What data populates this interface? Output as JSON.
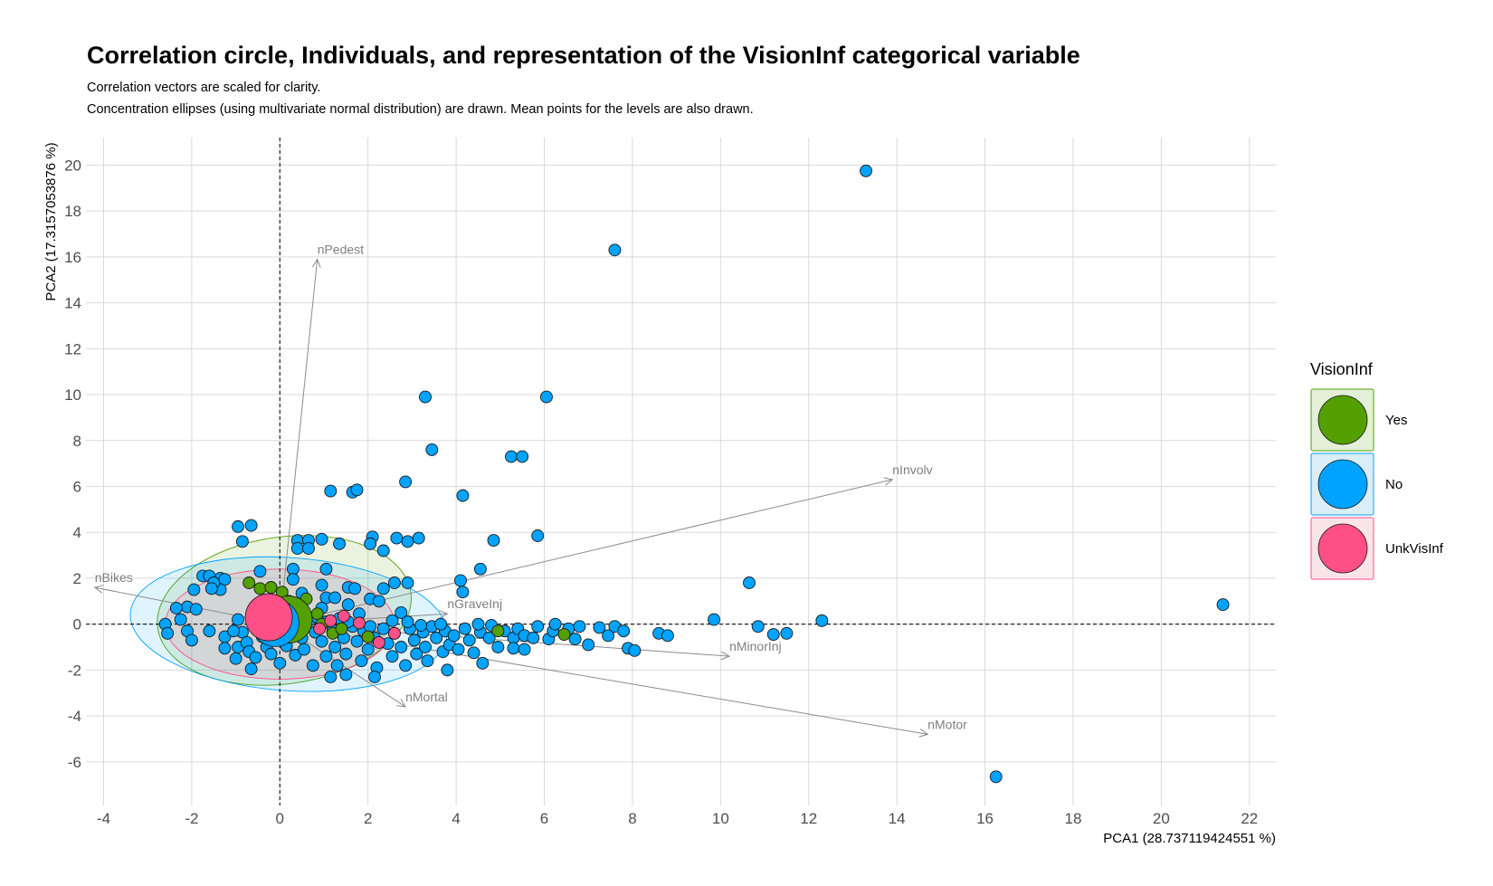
{
  "title": "Correlation circle, Individuals, and representation of the VisionInf categorical variable",
  "subtitle_lines": [
    "Correlation vectors are scaled for clarity.",
    "Concentration ellipses (using multivariate normal distribution) are drawn. Mean points for the levels are also drawn."
  ],
  "chart_data": {
    "type": "scatter",
    "xlabel": "PCA1 (28.737119424551 %)",
    "ylabel": "PCA2 (17.3157053876 %)",
    "xlim": [
      -4.4,
      22.6
    ],
    "ylim": [
      -7.9,
      21.2
    ],
    "xticks": [
      -4,
      -2,
      0,
      2,
      4,
      6,
      8,
      10,
      12,
      14,
      16,
      18,
      20,
      22
    ],
    "yticks": [
      -6,
      -4,
      -2,
      0,
      2,
      4,
      6,
      8,
      10,
      12,
      14,
      16,
      18,
      20
    ],
    "grid": true,
    "reference_lines": {
      "x": 0,
      "y": 0,
      "style": "dashed"
    },
    "legend": {
      "title": "VisionInf",
      "placement": "right",
      "items": [
        {
          "label": "Yes",
          "color": "#53A000",
          "fill": "#E3EFD6"
        },
        {
          "label": "No",
          "color": "#00A3FF",
          "fill": "#DAEEF9"
        },
        {
          "label": "UnkVisInf",
          "color": "#FF4F87",
          "fill": "#F9E4EA"
        }
      ]
    },
    "vectors": [
      {
        "label": "nPedest",
        "x": 0.85,
        "y": 15.9
      },
      {
        "label": "nBikes",
        "x": -4.2,
        "y": 1.6
      },
      {
        "label": "nGraveInj",
        "x": 3.8,
        "y": 0.45
      },
      {
        "label": "nInvolv",
        "x": 13.9,
        "y": 6.3
      },
      {
        "label": "nMinorInj",
        "x": 10.2,
        "y": -1.4
      },
      {
        "label": "nMortal",
        "x": 2.85,
        "y": -3.6
      },
      {
        "label": "nMotor",
        "x": 14.7,
        "y": -4.8
      }
    ],
    "ellipses": [
      {
        "level": "Yes",
        "cx": 0.1,
        "cy": 0.6,
        "rx": 2.9,
        "ry": 3.2,
        "angle_deg": -8
      },
      {
        "level": "No",
        "cx": 0.2,
        "cy": 0.0,
        "rx": 3.6,
        "ry": 2.9,
        "angle_deg": 4
      },
      {
        "level": "UnkVisInf",
        "cx": 0.0,
        "cy": 0.0,
        "rx": 2.6,
        "ry": 2.4,
        "angle_deg": 0
      }
    ],
    "means": [
      {
        "level": "Yes",
        "x": 0.2,
        "y": 0.2
      },
      {
        "level": "No",
        "x": -0.1,
        "y": 0.05
      },
      {
        "level": "UnkVisInf",
        "x": -0.25,
        "y": 0.3
      }
    ],
    "points_no": [
      [
        13.3,
        19.75
      ],
      [
        7.6,
        16.3
      ],
      [
        3.3,
        9.9
      ],
      [
        6.05,
        9.9
      ],
      [
        3.45,
        7.6
      ],
      [
        5.25,
        7.3
      ],
      [
        5.5,
        7.3
      ],
      [
        2.85,
        6.2
      ],
      [
        1.15,
        5.8
      ],
      [
        1.65,
        5.75
      ],
      [
        1.75,
        5.85
      ],
      [
        4.15,
        5.6
      ],
      [
        -0.95,
        4.25
      ],
      [
        -0.65,
        4.3
      ],
      [
        -0.85,
        3.6
      ],
      [
        0.4,
        3.65
      ],
      [
        0.65,
        3.65
      ],
      [
        0.95,
        3.7
      ],
      [
        0.4,
        3.3
      ],
      [
        0.65,
        3.3
      ],
      [
        1.35,
        3.5
      ],
      [
        2.1,
        3.8
      ],
      [
        2.05,
        3.5
      ],
      [
        2.35,
        3.2
      ],
      [
        2.65,
        3.75
      ],
      [
        2.9,
        3.6
      ],
      [
        3.15,
        3.75
      ],
      [
        4.85,
        3.65
      ],
      [
        5.85,
        3.85
      ],
      [
        4.55,
        2.4
      ],
      [
        -1.75,
        2.1
      ],
      [
        -1.6,
        2.1
      ],
      [
        -1.35,
        2.0
      ],
      [
        -1.25,
        1.95
      ],
      [
        -0.45,
        2.3
      ],
      [
        0.3,
        2.4
      ],
      [
        1.05,
        2.4
      ],
      [
        0.3,
        1.95
      ],
      [
        0.95,
        1.7
      ],
      [
        1.55,
        1.6
      ],
      [
        2.35,
        1.55
      ],
      [
        2.6,
        1.8
      ],
      [
        2.9,
        1.8
      ],
      [
        4.1,
        1.9
      ],
      [
        4.15,
        1.4
      ],
      [
        10.65,
        1.8
      ],
      [
        -2.1,
        0.75
      ],
      [
        -2.35,
        0.7
      ],
      [
        -1.95,
        1.5
      ],
      [
        -1.35,
        1.5
      ],
      [
        -1.9,
        0.65
      ],
      [
        -2.25,
        0.2
      ],
      [
        -2.6,
        0.0
      ],
      [
        -2.55,
        -0.4
      ],
      [
        -2.1,
        -0.3
      ],
      [
        -2.0,
        -0.7
      ],
      [
        -1.6,
        -0.3
      ],
      [
        -1.25,
        -0.55
      ],
      [
        -1.25,
        -1.05
      ],
      [
        -1.0,
        -1.5
      ],
      [
        -0.95,
        -1.0
      ],
      [
        -0.95,
        0.2
      ],
      [
        -0.85,
        -0.35
      ],
      [
        -0.75,
        -0.8
      ],
      [
        -0.7,
        -1.2
      ],
      [
        -0.55,
        -1.45
      ],
      [
        -0.65,
        -1.95
      ],
      [
        -0.4,
        -0.55
      ],
      [
        -0.3,
        -1.0
      ],
      [
        -0.2,
        -1.3
      ],
      [
        -0.05,
        -0.55
      ],
      [
        0.15,
        -0.95
      ],
      [
        0.35,
        -1.35
      ],
      [
        0.5,
        -0.6
      ],
      [
        0.55,
        -1.1
      ],
      [
        0.75,
        -1.8
      ],
      [
        0.8,
        -0.35
      ],
      [
        0.95,
        -0.75
      ],
      [
        1.05,
        -1.4
      ],
      [
        1.2,
        -0.25
      ],
      [
        1.25,
        -1.0
      ],
      [
        1.3,
        -1.8
      ],
      [
        1.15,
        -2.3
      ],
      [
        1.45,
        -0.6
      ],
      [
        1.5,
        -1.3
      ],
      [
        1.5,
        -2.2
      ],
      [
        1.65,
        -0.1
      ],
      [
        1.75,
        -0.75
      ],
      [
        1.85,
        -1.6
      ],
      [
        1.9,
        -0.3
      ],
      [
        2.0,
        -1.1
      ],
      [
        2.15,
        -0.6
      ],
      [
        2.2,
        -1.9
      ],
      [
        2.15,
        -2.3
      ],
      [
        2.35,
        -0.2
      ],
      [
        2.45,
        -0.85
      ],
      [
        2.55,
        -1.4
      ],
      [
        2.6,
        -0.4
      ],
      [
        2.75,
        -1.0
      ],
      [
        2.85,
        -1.8
      ],
      [
        2.95,
        -0.2
      ],
      [
        3.05,
        -0.7
      ],
      [
        3.1,
        -1.3
      ],
      [
        3.25,
        -0.35
      ],
      [
        3.3,
        -1.0
      ],
      [
        3.35,
        -1.6
      ],
      [
        3.45,
        -0.1
      ],
      [
        3.55,
        -0.6
      ],
      [
        3.7,
        -1.2
      ],
      [
        3.75,
        -0.3
      ],
      [
        3.85,
        -0.9
      ],
      [
        3.8,
        -2.0
      ],
      [
        3.95,
        -0.5
      ],
      [
        4.05,
        -1.1
      ],
      [
        4.2,
        -0.2
      ],
      [
        4.3,
        -0.7
      ],
      [
        4.4,
        -1.25
      ],
      [
        4.55,
        -0.35
      ],
      [
        4.6,
        -1.7
      ],
      [
        4.75,
        -0.6
      ],
      [
        4.8,
        -0.05
      ],
      [
        4.95,
        -1.0
      ],
      [
        5.1,
        -0.3
      ],
      [
        5.3,
        -0.6
      ],
      [
        5.3,
        -1.05
      ],
      [
        5.4,
        -0.2
      ],
      [
        5.55,
        -0.5
      ],
      [
        5.55,
        -1.1
      ],
      [
        5.75,
        -0.6
      ],
      [
        5.85,
        -0.1
      ],
      [
        6.1,
        -0.65
      ],
      [
        6.2,
        -0.3
      ],
      [
        6.25,
        0.0
      ],
      [
        6.55,
        -0.2
      ],
      [
        6.7,
        -0.65
      ],
      [
        6.8,
        -0.1
      ],
      [
        7.0,
        -0.9
      ],
      [
        7.25,
        -0.15
      ],
      [
        7.45,
        -0.5
      ],
      [
        7.6,
        -0.1
      ],
      [
        7.8,
        -0.3
      ],
      [
        7.9,
        -1.05
      ],
      [
        8.05,
        -1.15
      ],
      [
        8.6,
        -0.4
      ],
      [
        8.8,
        -0.5
      ],
      [
        9.85,
        0.2
      ],
      [
        10.85,
        -0.1
      ],
      [
        11.2,
        -0.45
      ],
      [
        11.5,
        -0.4
      ],
      [
        12.3,
        0.15
      ],
      [
        21.4,
        0.85
      ],
      [
        16.25,
        -6.65
      ],
      [
        -0.35,
        0.0
      ],
      [
        0.1,
        0.35
      ],
      [
        0.45,
        0.5
      ],
      [
        0.7,
        0.2
      ],
      [
        1.05,
        1.15
      ],
      [
        1.25,
        1.15
      ],
      [
        1.55,
        0.85
      ],
      [
        1.8,
        0.45
      ],
      [
        2.05,
        1.1
      ],
      [
        2.25,
        1.0
      ],
      [
        2.75,
        0.5
      ],
      [
        2.55,
        0.15
      ],
      [
        0.15,
        -0.2
      ],
      [
        0.55,
        -0.05
      ],
      [
        0.85,
        0.3
      ],
      [
        1.05,
        0.1
      ],
      [
        -0.5,
        0.4
      ],
      [
        -0.15,
        0.75
      ],
      [
        -1.05,
        -0.3
      ],
      [
        -0.5,
        -0.2
      ],
      [
        0.35,
        -0.35
      ],
      [
        1.55,
        0.1
      ],
      [
        2.05,
        -0.1
      ],
      [
        3.65,
        0.0
      ],
      [
        4.5,
        0.0
      ],
      [
        2.9,
        0.1
      ],
      [
        3.2,
        -0.05
      ],
      [
        1.35,
        0.25
      ],
      [
        0.95,
        0.7
      ],
      [
        -0.2,
        1.6
      ],
      [
        -1.5,
        1.8
      ],
      [
        -1.55,
        1.55
      ],
      [
        0.2,
        1.0
      ],
      [
        0.5,
        1.35
      ],
      [
        1.7,
        1.55
      ],
      [
        0.0,
        -1.7
      ]
    ],
    "points_yes": [
      [
        -0.7,
        1.8
      ],
      [
        -0.45,
        1.55
      ],
      [
        -0.2,
        1.6
      ],
      [
        0.05,
        1.4
      ],
      [
        0.6,
        1.1
      ],
      [
        0.85,
        0.45
      ],
      [
        0.95,
        0.0
      ],
      [
        1.2,
        -0.4
      ],
      [
        1.4,
        -0.2
      ],
      [
        2.0,
        -0.55
      ],
      [
        4.95,
        -0.3
      ],
      [
        6.45,
        -0.45
      ],
      [
        -0.3,
        0.6
      ],
      [
        0.3,
        0.8
      ]
    ],
    "points_unk": [
      [
        1.15,
        0.15
      ],
      [
        1.45,
        0.35
      ],
      [
        1.8,
        0.05
      ],
      [
        2.25,
        -0.8
      ],
      [
        2.6,
        -0.4
      ],
      [
        0.9,
        -0.2
      ]
    ]
  }
}
